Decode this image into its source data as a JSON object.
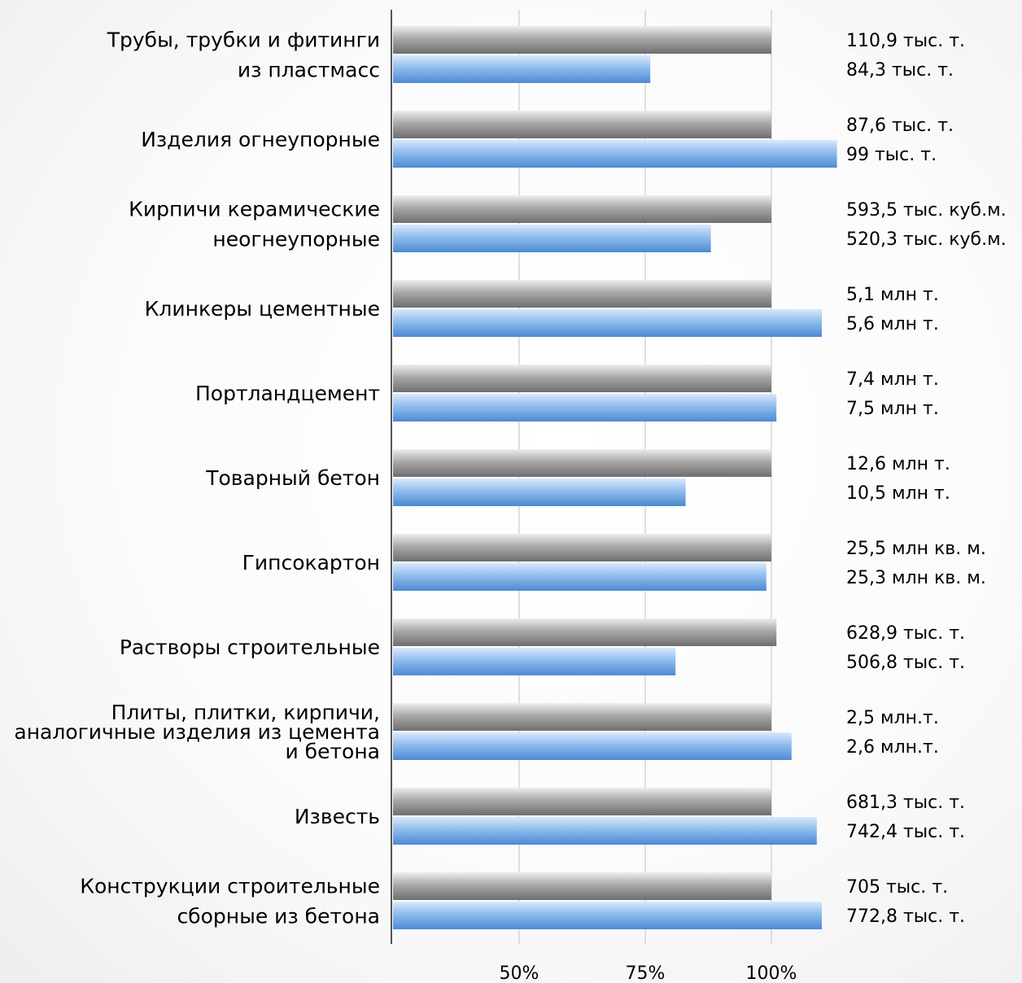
{
  "chart_data": {
    "type": "bar",
    "orientation": "horizontal",
    "grid": true,
    "xlim": [
      25,
      110
    ],
    "x_ticks": [
      50,
      75,
      100
    ],
    "x_tick_labels": [
      "50%",
      "75%",
      "100%"
    ],
    "categories": [
      [
        "Трубы, трубки и фитинги",
        "из пластмасс"
      ],
      [
        "Изделия огнеупорные"
      ],
      [
        "Кирпичи керамические",
        "неогнеупорные"
      ],
      [
        "Клинкеры цементные"
      ],
      [
        "Портландцемент"
      ],
      [
        "Товарный бетон"
      ],
      [
        "Гипсокартон"
      ],
      [
        "Растворы строительные"
      ],
      [
        "Плиты, плитки, кирпичи,",
        "аналогичные изделия из цемента",
        "и бетона"
      ],
      [
        "Известь"
      ],
      [
        "Конструкции строительные",
        "сборные из бетона"
      ]
    ],
    "series": [
      {
        "color": "#909090",
        "values": [
          100,
          100,
          100,
          100,
          100,
          100,
          100,
          101,
          100,
          100,
          100
        ],
        "labels": [
          "110,9 тыс. т.",
          "87,6 тыс. т.",
          "593,5 тыс. куб.м.",
          "5,1 млн т.",
          "7,4 млн т.",
          "12,6 млн т.",
          "25,5 млн кв. м.",
          "628,9 тыс. т.",
          "2,5 млн.т.",
          "681,3 тыс. т.",
          "705 тыс. т."
        ]
      },
      {
        "color": "#6a9fdd",
        "values": [
          76,
          113,
          88,
          110,
          101,
          83,
          99,
          81,
          104,
          109,
          110
        ],
        "labels": [
          "84,3 тыс. т.",
          "99 тыс. т.",
          "520,3 тыс. куб.м.",
          "5,6 млн т.",
          "7,5 млн  т.",
          "10,5 млн т.",
          "25,3 млн кв. м.",
          "506,8 тыс. т.",
          "2,6 млн.т.",
          "742,4 тыс. т.",
          "772,8 тыс. т."
        ]
      }
    ]
  }
}
